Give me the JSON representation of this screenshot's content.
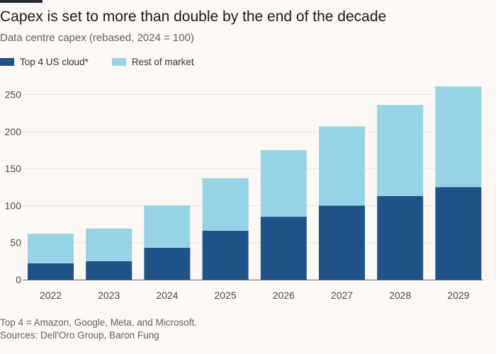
{
  "chart_data": {
    "type": "bar",
    "stacked": true,
    "title": "Capex is set to more than double by the end of the decade",
    "subtitle": "Data centre capex (rebased, 2024 = 100)",
    "categories": [
      "2022",
      "2023",
      "2024",
      "2025",
      "2026",
      "2027",
      "2028",
      "2029"
    ],
    "series": [
      {
        "name": "Top 4 US cloud*",
        "color": "#1f5289",
        "values": [
          22,
          25,
          43,
          66,
          85,
          100,
          113,
          125
        ]
      },
      {
        "name": "Rest of market",
        "color": "#97d3e6",
        "values": [
          40,
          44,
          57,
          71,
          90,
          107,
          123,
          136
        ]
      }
    ],
    "yticks": [
      "0",
      "50",
      "100",
      "150",
      "200",
      "250"
    ],
    "ylim": [
      0,
      262
    ],
    "grid": true,
    "legend_position": "top-left"
  },
  "footer": {
    "note": "Top 4 = Amazon, Google, Meta, and Microsoft.",
    "sources": "Sources: Dell'Oro Group, Baron Fung"
  }
}
